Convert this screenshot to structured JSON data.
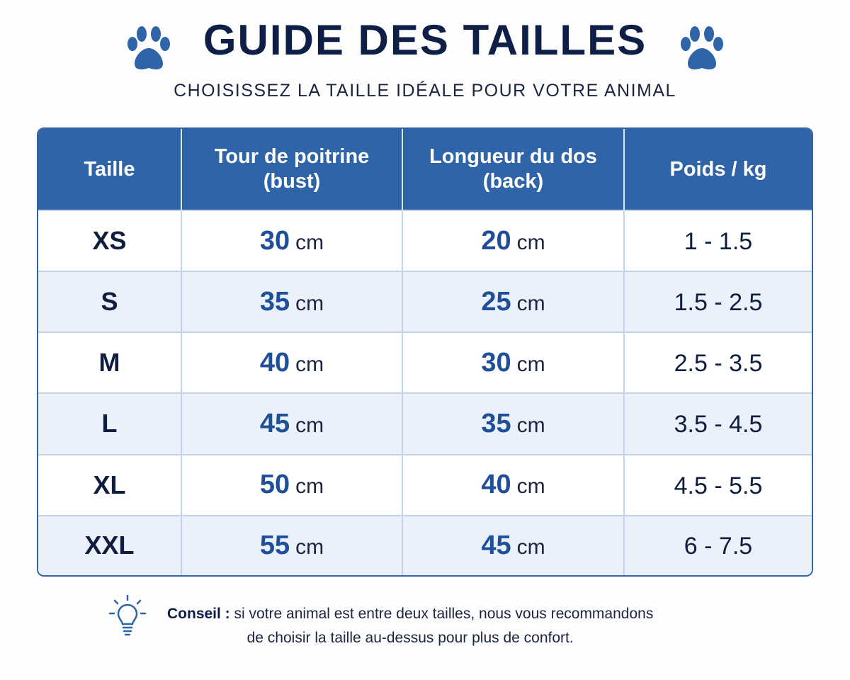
{
  "header": {
    "title": "GUIDE DES TAILLES",
    "subtitle": "CHOISISSEZ LA TAILLE IDÉALE POUR VOTRE ANIMAL"
  },
  "table": {
    "columns": [
      [
        "Taille"
      ],
      [
        "Tour de poitrine",
        "(bust)"
      ],
      [
        "Longueur du dos",
        "(back)"
      ],
      [
        "Poids / kg"
      ]
    ],
    "rows": [
      [
        "XS",
        {
          "value": 30,
          "unit": "cm"
        },
        {
          "value": 20,
          "unit": "cm"
        },
        "1 - 1.5"
      ],
      [
        "S",
        {
          "value": 35,
          "unit": "cm"
        },
        {
          "value": 25,
          "unit": "cm"
        },
        "1.5 - 2.5"
      ],
      [
        "M",
        {
          "value": 40,
          "unit": "cm"
        },
        {
          "value": 30,
          "unit": "cm"
        },
        "2.5 - 3.5"
      ],
      [
        "L",
        {
          "value": 45,
          "unit": "cm"
        },
        {
          "value": 35,
          "unit": "cm"
        },
        "3.5 - 4.5"
      ],
      [
        "XL",
        {
          "value": 50,
          "unit": "cm"
        },
        {
          "value": 40,
          "unit": "cm"
        },
        "4.5 - 5.5"
      ],
      [
        "XXL",
        {
          "value": 55,
          "unit": "cm"
        },
        {
          "value": 45,
          "unit": "cm"
        },
        "6 - 7.5"
      ]
    ]
  },
  "tip": {
    "label": "Conseil :",
    "lines": [
      "si votre animal est entre deux tailles, nous vous recommandons",
      "de choisir la taille au-dessus pour plus de confort."
    ]
  }
}
